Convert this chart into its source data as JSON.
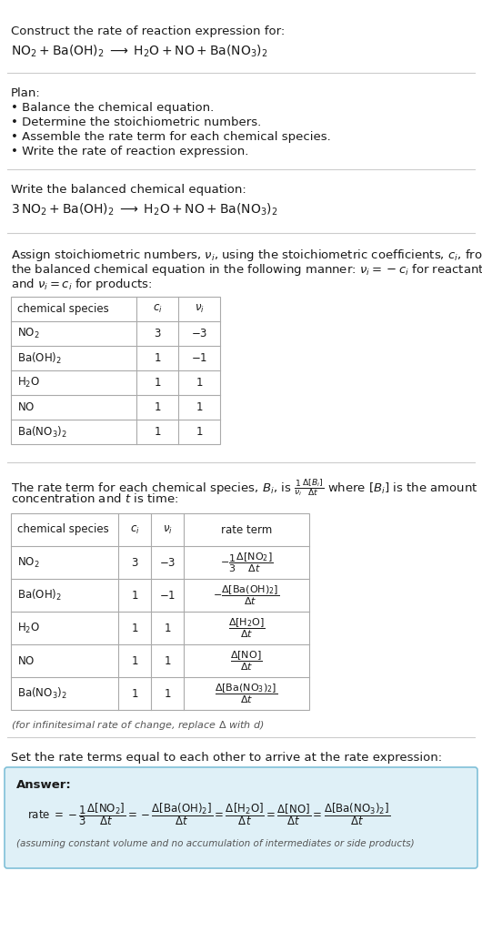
{
  "bg_color": "#ffffff",
  "text_color": "#1a1a1a",
  "gray_text": "#555555",
  "light_blue_bg": "#dff0f7",
  "table_border": "#aaaaaa",
  "separator_color": "#cccccc",
  "title_text": "Construct the rate of reaction expression for:",
  "reaction_unbalanced": "$\\mathrm{NO_2 + Ba(OH)_2 \\;\\longrightarrow\\; H_2O + NO + Ba(NO_3)_2}$",
  "plan_header": "Plan:",
  "plan_items": [
    "• Balance the chemical equation.",
    "• Determine the stoichiometric numbers.",
    "• Assemble the rate term for each chemical species.",
    "• Write the rate of reaction expression."
  ],
  "balanced_header": "Write the balanced chemical equation:",
  "reaction_balanced": "$\\mathrm{3\\,NO_2 + Ba(OH)_2 \\;\\longrightarrow\\; H_2O + NO + Ba(NO_3)_2}$",
  "stoich_intro": "Assign stoichiometric numbers, $\\nu_i$, using the stoichiometric coefficients, $c_i$, from the balanced chemical equation in the following manner: $\\nu_i = -c_i$ for reactants and $\\nu_i = c_i$ for products:",
  "table1_headers": [
    "chemical species",
    "$c_i$",
    "$\\nu_i$"
  ],
  "table1_rows": [
    [
      "$\\mathrm{NO_2}$",
      "3",
      "$-3$"
    ],
    [
      "$\\mathrm{Ba(OH)_2}$",
      "1",
      "$-1$"
    ],
    [
      "$\\mathrm{H_2O}$",
      "1",
      "$1$"
    ],
    [
      "$\\mathrm{NO}$",
      "1",
      "$1$"
    ],
    [
      "$\\mathrm{Ba(NO_3)_2}$",
      "1",
      "$1$"
    ]
  ],
  "rate_intro": "The rate term for each chemical species, $B_i$, is $\\dfrac{1}{\\nu_i}\\dfrac{\\Delta[B_i]}{\\Delta t}$ where $[B_i]$ is the amount concentration and $t$ is time:",
  "table2_headers": [
    "chemical species",
    "$c_i$",
    "$\\nu_i$",
    "rate term"
  ],
  "table2_rows": [
    [
      "$\\mathrm{NO_2}$",
      "3",
      "$-3$",
      "$-\\dfrac{1}{3}\\dfrac{\\Delta[\\mathrm{NO_2}]}{\\Delta t}$"
    ],
    [
      "$\\mathrm{Ba(OH)_2}$",
      "1",
      "$-1$",
      "$-\\dfrac{\\Delta[\\mathrm{Ba(OH)_2}]}{\\Delta t}$"
    ],
    [
      "$\\mathrm{H_2O}$",
      "1",
      "$1$",
      "$\\dfrac{\\Delta[\\mathrm{H_2O}]}{\\Delta t}$"
    ],
    [
      "$\\mathrm{NO}$",
      "1",
      "$1$",
      "$\\dfrac{\\Delta[\\mathrm{NO}]}{\\Delta t}$"
    ],
    [
      "$\\mathrm{Ba(NO_3)_2}$",
      "1",
      "$1$",
      "$\\dfrac{\\Delta[\\mathrm{Ba(NO_3)_2}]}{\\Delta t}$"
    ]
  ],
  "infinitesimal_note": "(for infinitesimal rate of change, replace $\\Delta$ with $d$)",
  "set_rate_header": "Set the rate terms equal to each other to arrive at the rate expression:",
  "answer_label": "Answer:",
  "rate_expression": "rate $= -\\dfrac{1}{3}\\dfrac{\\Delta[\\mathrm{NO_2}]}{\\Delta t} = -\\dfrac{\\Delta[\\mathrm{Ba(OH)_2}]}{\\Delta t} = \\dfrac{\\Delta[\\mathrm{H_2O}]}{\\Delta t} = \\dfrac{\\Delta[\\mathrm{NO}]}{\\Delta t} = \\dfrac{\\Delta[\\mathrm{Ba(NO_3)_2}]}{\\Delta t}$",
  "assuming_note": "(assuming constant volume and no accumulation of intermediates or side products)"
}
